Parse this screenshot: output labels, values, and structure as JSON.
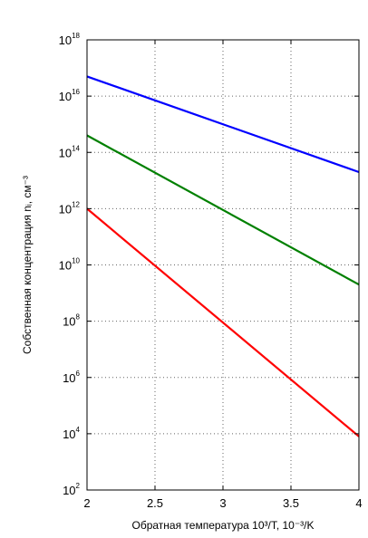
{
  "chart_data": {
    "type": "line",
    "xlabel": "Обратная температура 10³/T, 10⁻³/K",
    "ylabel": "Собственная концентрация nᵢ, см⁻³",
    "y_scale": "log",
    "xlim": [
      2,
      4
    ],
    "ylim": [
      100,
      1000000000000000000
    ],
    "x_ticks": [
      {
        "value": 2,
        "label": "2"
      },
      {
        "value": 2.5,
        "label": "2.5"
      },
      {
        "value": 3,
        "label": "3"
      },
      {
        "value": 3.5,
        "label": "3.5"
      },
      {
        "value": 4,
        "label": "4"
      }
    ],
    "y_ticks": [
      {
        "value": 100,
        "base": "10",
        "exp": "2"
      },
      {
        "value": 10000,
        "base": "10",
        "exp": "4"
      },
      {
        "value": 1000000,
        "base": "10",
        "exp": "6"
      },
      {
        "value": 100000000,
        "base": "10",
        "exp": "8"
      },
      {
        "value": 10000000000,
        "base": "10",
        "exp": "10"
      },
      {
        "value": 1000000000000,
        "base": "10",
        "exp": "12"
      },
      {
        "value": 100000000000000,
        "base": "10",
        "exp": "14"
      },
      {
        "value": 10000000000000000,
        "base": "10",
        "exp": "16"
      },
      {
        "value": 1000000000000000000,
        "base": "10",
        "exp": "18"
      }
    ],
    "grid": true,
    "series": [
      {
        "color": "#0000ff",
        "x": [
          2,
          4
        ],
        "y": [
          50000000000000000,
          20000000000000
        ]
      },
      {
        "color": "#008000",
        "x": [
          2,
          4
        ],
        "y": [
          400000000000000,
          2000000000
        ]
      },
      {
        "color": "#ff0000",
        "x": [
          2,
          4
        ],
        "y": [
          1000000000000,
          8000
        ]
      }
    ]
  }
}
